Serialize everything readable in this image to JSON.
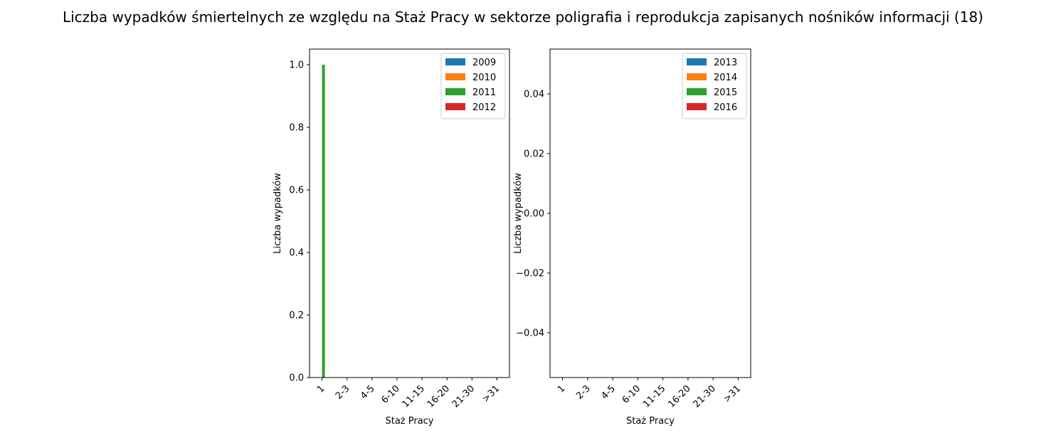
{
  "title": "Liczba wypadków śmiertelnych ze względu na Staż Pracy w sektorze poligrafia i reprodukcja zapisanych nośników informacji  (18)",
  "colors": {
    "s1": "#1f77b4",
    "s2": "#ff7f0e",
    "s3": "#2ca02c",
    "s4": "#d62728"
  },
  "chart_data": [
    {
      "type": "bar",
      "xlabel": "Staż Pracy",
      "ylabel": "Liczba wypadków",
      "categories": [
        "1",
        "2-3",
        "4-5",
        "6-10",
        "11-15",
        "16-20",
        "21-30",
        ">31"
      ],
      "ylim": [
        0,
        1.05
      ],
      "yticks": [
        "0.0",
        "0.2",
        "0.4",
        "0.6",
        "0.8",
        "1.0"
      ],
      "legend_position": "top-right",
      "series": [
        {
          "name": "2009",
          "values": [
            0,
            0,
            0,
            0,
            0,
            0,
            0,
            0
          ]
        },
        {
          "name": "2010",
          "values": [
            0,
            0,
            0,
            0,
            0,
            0,
            0,
            0
          ]
        },
        {
          "name": "2011",
          "values": [
            1,
            0,
            0,
            0,
            0,
            0,
            0,
            0
          ]
        },
        {
          "name": "2012",
          "values": [
            0,
            0,
            0,
            0,
            0,
            0,
            0,
            0
          ]
        }
      ]
    },
    {
      "type": "bar",
      "xlabel": "Staż Pracy",
      "ylabel": "Liczba wypadków",
      "categories": [
        "1",
        "2-3",
        "4-5",
        "6-10",
        "11-15",
        "16-20",
        "21-30",
        ">31"
      ],
      "ylim": [
        -0.055,
        0.055
      ],
      "yticks": [
        "−0.04",
        "−0.02",
        "0.00",
        "0.02",
        "0.04"
      ],
      "legend_position": "top-right",
      "series": [
        {
          "name": "2013",
          "values": [
            0,
            0,
            0,
            0,
            0,
            0,
            0,
            0
          ]
        },
        {
          "name": "2014",
          "values": [
            0,
            0,
            0,
            0,
            0,
            0,
            0,
            0
          ]
        },
        {
          "name": "2015",
          "values": [
            0,
            0,
            0,
            0,
            0,
            0,
            0,
            0
          ]
        },
        {
          "name": "2016",
          "values": [
            0,
            0,
            0,
            0,
            0,
            0,
            0,
            0
          ]
        }
      ]
    }
  ]
}
